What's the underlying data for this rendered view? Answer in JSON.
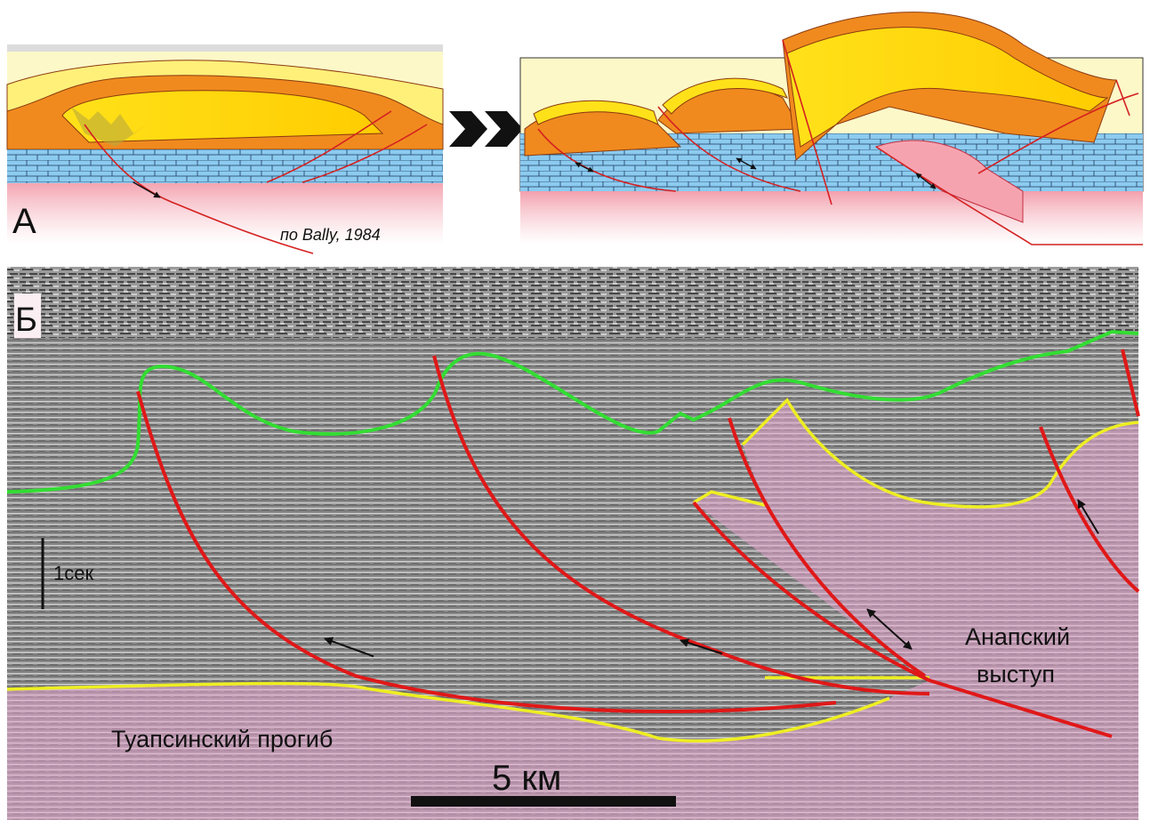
{
  "panel_a": {
    "label": "А",
    "citation": "по Bally, 1984"
  },
  "panel_b": {
    "label": "Б",
    "time_scale": "1сек",
    "anapa_label": [
      "Анапский",
      "выступ"
    ],
    "trough_label": "Туапсинский прогиб",
    "scale_bar": "5 км"
  }
}
